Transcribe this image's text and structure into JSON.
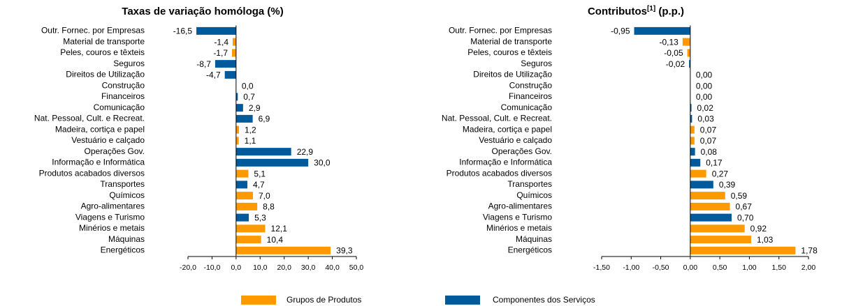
{
  "chart_data": [
    {
      "type": "bar",
      "orientation": "horizontal",
      "title": "Taxas de variação homóloga (%)",
      "categories": [
        "Outr. Fornec. por Empresas",
        "Material de transporte",
        "Peles, couros e têxteis",
        "Seguros",
        "Direitos de Utilização",
        "Construção",
        "Financeiros",
        "Comunicação",
        "Nat. Pessoal, Cult. e Recreat.",
        "Madeira, cortiça e papel",
        "Vestuário e calçado",
        "Operações Gov.",
        "Informação e Informática",
        "Produtos acabados diversos",
        "Transportes",
        "Químicos",
        "Agro-alimentares",
        "Viagens e Turismo",
        "Minérios e metais",
        "Máquinas",
        "Energéticos"
      ],
      "series": [
        {
          "name": "Grupos de Produtos",
          "color": "#ff9900",
          "values": [
            null,
            -1.4,
            -1.7,
            null,
            null,
            null,
            null,
            null,
            null,
            1.2,
            1.1,
            null,
            null,
            5.1,
            null,
            7.0,
            8.8,
            null,
            12.1,
            10.4,
            39.3
          ],
          "value_labels": [
            null,
            "-1,4",
            "-1,7",
            null,
            null,
            null,
            null,
            null,
            null,
            "1,2",
            "1,1",
            null,
            null,
            "5,1",
            null,
            "7,0",
            "8,8",
            null,
            "12,1",
            "10,4",
            "39,3"
          ]
        },
        {
          "name": "Componentes dos Serviços",
          "color": "#005a9c",
          "values": [
            -16.5,
            null,
            null,
            -8.7,
            -4.7,
            0.0,
            0.7,
            2.9,
            6.9,
            null,
            null,
            22.9,
            30.0,
            null,
            4.7,
            null,
            null,
            5.3,
            null,
            null,
            null
          ],
          "value_labels": [
            "-16,5",
            null,
            null,
            "-8,7",
            "-4,7",
            "0,0",
            "0,7",
            "2,9",
            "6,9",
            null,
            null,
            "22,9",
            "30,0",
            null,
            "4,7",
            null,
            null,
            "5,3",
            null,
            null,
            null
          ]
        }
      ],
      "xlim": [
        -20,
        50
      ],
      "xticks": [
        {
          "value": -20,
          "label": "-20,0"
        },
        {
          "value": -10,
          "label": "-10,0"
        },
        {
          "value": 0,
          "label": "0,0"
        },
        {
          "value": 10,
          "label": "10,0"
        },
        {
          "value": 20,
          "label": "20,0"
        },
        {
          "value": 30,
          "label": "30,0"
        },
        {
          "value": 40,
          "label": "40,0"
        },
        {
          "value": 50,
          "label": "50,0"
        }
      ]
    },
    {
      "type": "bar",
      "orientation": "horizontal",
      "title": "Contributos",
      "title_superscript": "[1]",
      "title_suffix": " (p.p.)",
      "categories": [
        "Outr. Fornec. por Empresas",
        "Material de transporte",
        "Peles, couros e têxteis",
        "Seguros",
        "Direitos de Utilização",
        "Construção",
        "Financeiros",
        "Comunicação",
        "Nat. Pessoal, Cult. e Recreat.",
        "Madeira, cortiça e papel",
        "Vestuário e calçado",
        "Operações Gov.",
        "Informação e Informática",
        "Produtos acabados diversos",
        "Transportes",
        "Químicos",
        "Agro-alimentares",
        "Viagens e Turismo",
        "Minérios e metais",
        "Máquinas",
        "Energéticos"
      ],
      "series": [
        {
          "color": "#ff9900",
          "values": [
            null,
            -0.13,
            -0.05,
            null,
            null,
            null,
            null,
            null,
            null,
            0.07,
            0.07,
            null,
            null,
            0.27,
            null,
            0.59,
            0.67,
            null,
            0.92,
            1.03,
            1.78
          ],
          "value_labels": [
            null,
            "-0,13",
            "-0,05",
            null,
            null,
            null,
            null,
            null,
            null,
            "0,07",
            "0,07",
            null,
            null,
            "0,27",
            null,
            "0,59",
            "0,67",
            null,
            "0,92",
            "1,03",
            "1,78"
          ]
        },
        {
          "color": "#005a9c",
          "values": [
            -0.95,
            null,
            null,
            -0.02,
            0.0,
            0.0,
            0.0,
            0.02,
            0.03,
            null,
            null,
            0.08,
            0.17,
            null,
            0.39,
            null,
            null,
            0.7,
            null,
            null,
            null
          ],
          "value_labels": [
            "-0,95",
            null,
            null,
            "-0,02",
            "0,00",
            "0,00",
            "0,00",
            "0,02",
            "0,03",
            null,
            null,
            "0,08",
            "0,17",
            null,
            "0,39",
            null,
            null,
            "0,70",
            null,
            null,
            null
          ]
        }
      ],
      "xlim": [
        -1.5,
        2.0
      ],
      "xticks": [
        {
          "value": -1.5,
          "label": "-1,50"
        },
        {
          "value": -1.0,
          "label": "-1,00"
        },
        {
          "value": -0.5,
          "label": "-0,50"
        },
        {
          "value": 0,
          "label": "0,00"
        },
        {
          "value": 0.5,
          "label": "0,50"
        },
        {
          "value": 1.0,
          "label": "1,00"
        },
        {
          "value": 1.5,
          "label": "1,50"
        },
        {
          "value": 2.0,
          "label": "2,00"
        }
      ]
    }
  ]
}
